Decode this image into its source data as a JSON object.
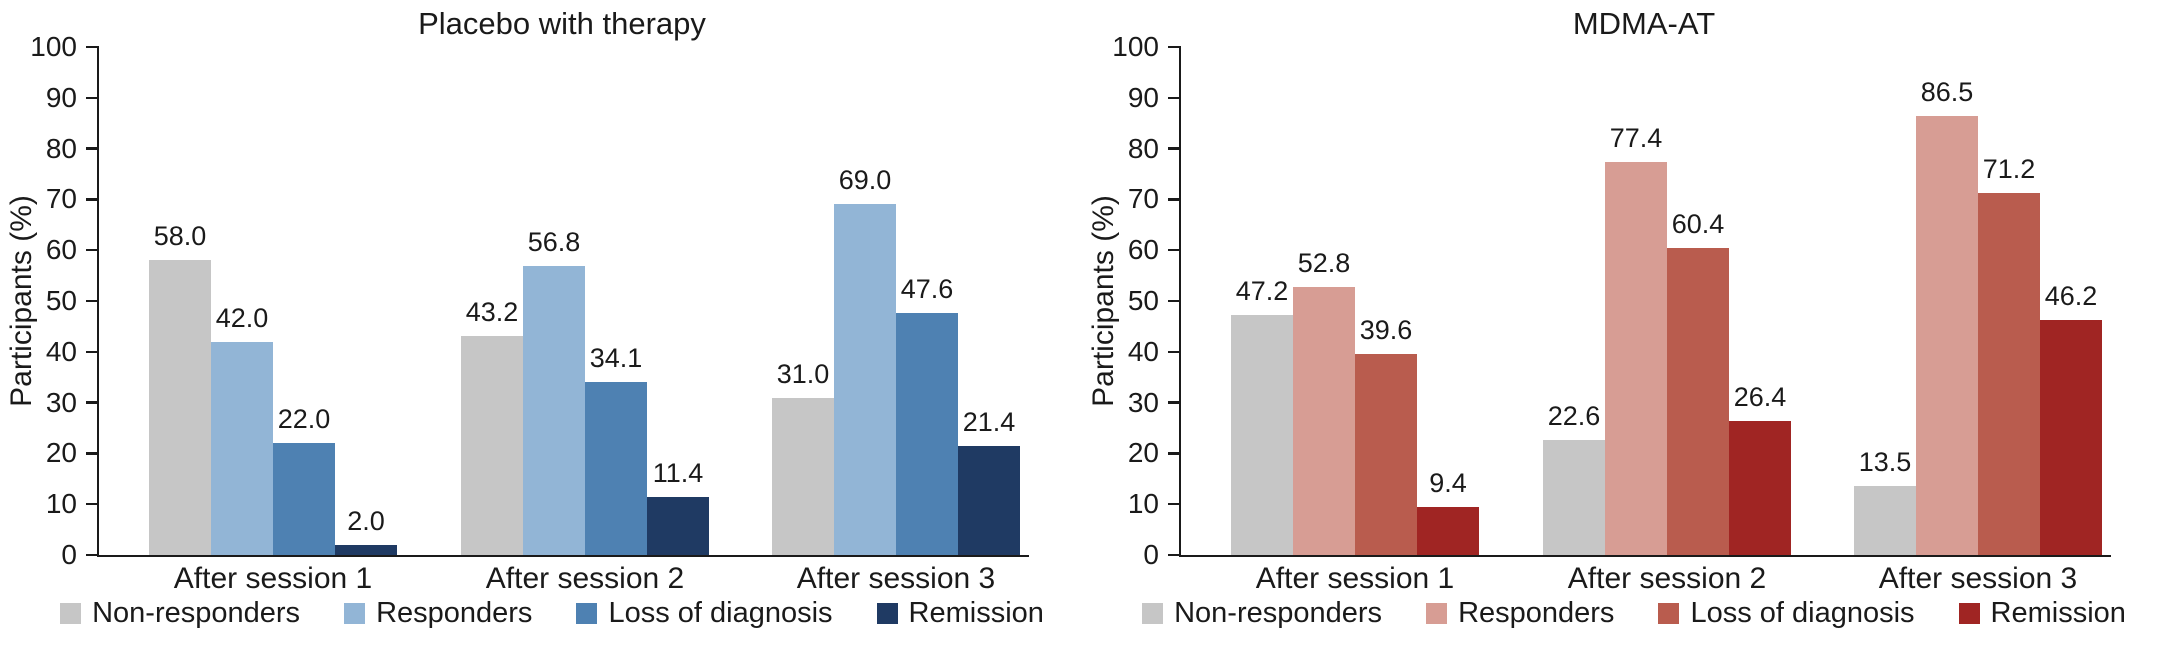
{
  "colors": {
    "axis": "#1a1a1a",
    "background": "#ffffff"
  },
  "chart_data": [
    {
      "type": "bar",
      "title": "Placebo with therapy",
      "xlabel": "",
      "ylabel": "Participants (%)",
      "ylim": [
        0,
        100
      ],
      "yticks": [
        0,
        10,
        20,
        30,
        40,
        50,
        60,
        70,
        80,
        90,
        100
      ],
      "grid": false,
      "legend_position": "bottom",
      "value_labels": true,
      "value_label_decimals": 1,
      "categories": [
        "After session 1",
        "After session 2",
        "After session 3"
      ],
      "series": [
        {
          "name": "Non-responders",
          "color": "#c6c6c6",
          "values": [
            58.0,
            43.2,
            31.0
          ]
        },
        {
          "name": "Responders",
          "color": "#92b5d6",
          "values": [
            42.0,
            56.8,
            69.0
          ]
        },
        {
          "name": "Loss of diagnosis",
          "color": "#4e81b2",
          "values": [
            22.0,
            34.1,
            47.6
          ]
        },
        {
          "name": "Remission",
          "color": "#1f3a63",
          "values": [
            2.0,
            11.4,
            21.4
          ]
        }
      ]
    },
    {
      "type": "bar",
      "title": "MDMA-AT",
      "xlabel": "",
      "ylabel": "Participants (%)",
      "ylim": [
        0,
        100
      ],
      "yticks": [
        0,
        10,
        20,
        30,
        40,
        50,
        60,
        70,
        80,
        90,
        100
      ],
      "grid": false,
      "legend_position": "bottom",
      "value_labels": true,
      "value_label_decimals": 1,
      "categories": [
        "After session 1",
        "After session 2",
        "After session 3"
      ],
      "series": [
        {
          "name": "Non-responders",
          "color": "#c6c6c6",
          "values": [
            47.2,
            22.6,
            13.5
          ]
        },
        {
          "name": "Responders",
          "color": "#d79d94",
          "values": [
            52.8,
            77.4,
            86.5
          ]
        },
        {
          "name": "Loss of diagnosis",
          "color": "#b95c4e",
          "values": [
            39.6,
            60.4,
            71.2
          ]
        },
        {
          "name": "Remission",
          "color": "#a02523",
          "values": [
            9.4,
            26.4,
            46.2
          ]
        }
      ]
    }
  ]
}
